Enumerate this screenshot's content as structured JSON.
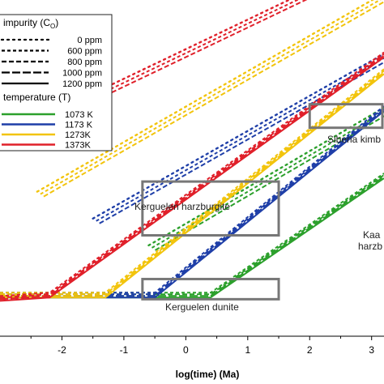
{
  "chart_data": {
    "type": "line",
    "xlabel": "log(time) (Ma)",
    "ylabel": "",
    "xlim": [
      -3.0,
      3.2
    ],
    "ylim": [
      0.0,
      1.0
    ],
    "xticks": [
      -2,
      -1,
      0,
      1,
      2,
      3
    ],
    "xtick_labels": [
      "-2",
      "-1",
      "0",
      "1",
      "2",
      "3"
    ],
    "grid": false,
    "legend_impurity": {
      "title": "impurity (C",
      "title_sub": "O",
      "title_end": ")",
      "entries": [
        {
          "label": "0 ppm",
          "dash": "dotted"
        },
        {
          "label": "600 ppm",
          "dash": "short-dash"
        },
        {
          "label": "800 ppm",
          "dash": "dash"
        },
        {
          "label": "1000 ppm",
          "dash": "long-dash"
        },
        {
          "label": "1200 ppm",
          "dash": "solid"
        }
      ]
    },
    "legend_temperature": {
      "title": "temperature (T)",
      "entries": [
        {
          "label": "1073 K",
          "color": "#2ca02c"
        },
        {
          "label": "1173 K",
          "color": "#1f3fa8"
        },
        {
          "label": "1273K",
          "color": "#f2c40d"
        },
        {
          "label": "1373K",
          "color": "#e0202a"
        }
      ]
    },
    "series_groups": [
      {
        "temperature": "1073 K",
        "color": "#2ca02c",
        "dotted": [
          [
            -0.6,
            0.27
          ],
          [
            3.2,
            0.68
          ]
        ],
        "solid": [
          [
            -3.0,
            0.115
          ],
          [
            0.4,
            0.115
          ],
          [
            3.2,
            0.47
          ]
        ]
      },
      {
        "temperature": "1173 K",
        "color": "#1f3fa8",
        "dotted": [
          [
            -1.5,
            0.35
          ],
          [
            3.2,
            0.84
          ]
        ],
        "solid": [
          [
            -3.0,
            0.115
          ],
          [
            -0.5,
            0.115
          ],
          [
            3.2,
            0.67
          ]
        ]
      },
      {
        "temperature": "1273K",
        "color": "#f2c40d",
        "dotted": [
          [
            -2.4,
            0.43
          ],
          [
            3.2,
            1.02
          ]
        ],
        "solid": [
          [
            -3.0,
            0.115
          ],
          [
            -1.3,
            0.115
          ],
          [
            3.2,
            0.78
          ]
        ]
      },
      {
        "temperature": "1373K",
        "color": "#e0202a",
        "dotted": [
          [
            -3.0,
            0.59
          ],
          [
            2.8,
            1.1
          ]
        ],
        "solid": [
          [
            -3.0,
            0.105
          ],
          [
            -2.2,
            0.115
          ],
          [
            3.2,
            0.83
          ]
        ]
      }
    ],
    "annotations": [
      {
        "label": "Siberia kimb",
        "box_x": [
          2.0,
          3.2
        ],
        "box_y": [
          0.62,
          0.69
        ]
      },
      {
        "label": "Kerguelen harzburgite",
        "box_x": [
          -0.7,
          1.5
        ],
        "box_y": [
          0.3,
          0.46
        ]
      },
      {
        "label": "Kerguelen dunite",
        "box_x": [
          -0.7,
          1.5
        ],
        "box_y": [
          0.11,
          0.17
        ]
      },
      {
        "label": "Kaa",
        "label2": "harzb",
        "box_x": null,
        "box_y": null
      }
    ]
  }
}
